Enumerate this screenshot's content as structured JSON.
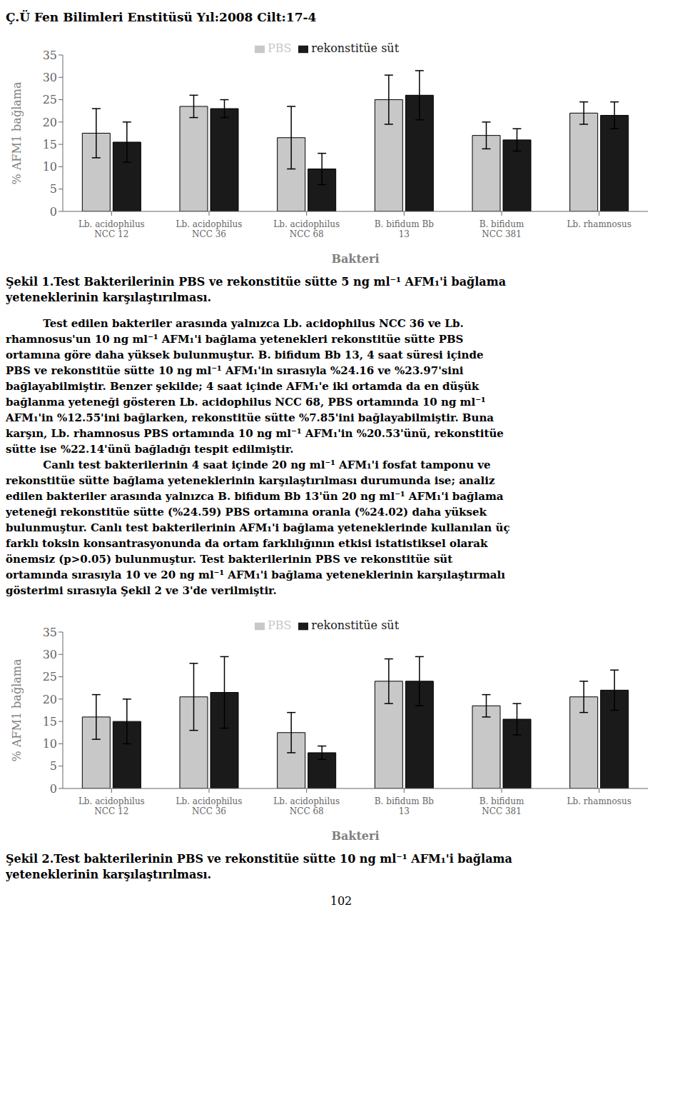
{
  "header": "Ç.Ü Fen Bilimleri Enstitüsü Yıl:2008  Cilt:17-4",
  "footer": "102",
  "body_text": [
    "          Test edilen bakteriler arasında yalnızca Lb. acidophilus NCC 36 ve Lb.",
    "rhamnosus'un 10 ng ml⁻¹ AFM₁'i bağlama yetenekleri rekonstitüe sütte PBS",
    "ortamına göre daha yüksek bulunmuştur. B. bifidum Bb 13, 4 saat süresi içinde",
    "PBS ve rekonstitüe sütte 10 ng ml⁻¹ AFM₁'in sırasıyla %24.16 ve %23.97'sini",
    "bağlayabilmiştir. Benzer şekilde; 4 saat içinde AFM₁'e iki ortamda da en düşük",
    "bağlanma yeteneği gösteren Lb. acidophilus NCC 68, PBS ortamında 10 ng ml⁻¹",
    "AFM₁'in %12.55'ini bağlarken, rekonstitüe sütte %7.85'ini bağlayabilmiştir. Buna",
    "karşın, Lb. rhamnosus PBS ortamında 10 ng ml⁻¹ AFM₁'in %20.53'ünü, rekonstitüe",
    "sütte ise %22.14'ünü bağladığı tespit edilmiştir.",
    "          Canlı test bakterilerinin 4 saat içinde 20 ng ml⁻¹ AFM₁'i fosfat tamponu ve",
    "rekonstitüe sütte bağlama yeteneklerinin karşılaştırılması durumunda ise; analiz",
    "edilen bakteriler arasında yalnızca B. bifidum Bb 13'ün 20 ng ml⁻¹ AFM₁'i bağlama",
    "yeteneği rekonstitüe sütte (%24.59) PBS ortamına oranla (%24.02) daha yüksek",
    "bulunmuştur. Canlı test bakterilerinin AFM₁'i bağlama yeteneklerinde kullanılan üç",
    "farklı toksin konsantrasyonunda da ortam farklılığının etkisi istatistiksel olarak",
    "önemsiz (p>0.05) bulunmuştur. Test bakterilerinin PBS ve rekonstitüe süt",
    "ortamında sırasıyla 10 ve 20 ng ml⁻¹ AFM₁'i bağlama yeteneklerinin karşılaştırmalı",
    "gösterimi sırasıyla Şekil 2 ve 3'de verilmiştir."
  ],
  "chart_data": [
    {
      "type": "bar",
      "title": "Şekil 1.Test Bakterilerinin PBS ve rekonstitüe sütte 5 ng ml⁻¹ AFM₁'i bağlama\nyeteneklerinin karşılaştırılması.",
      "xlabel": "Bakteri",
      "ylabel": "% AFM1 bağlama",
      "categories": [
        "Lb. acidophilus\nNCC 12",
        "Lb. acidophilus\nNCC 36",
        "Lb. acidophilus\nNCC 68",
        "B. bifidum Bb\n13",
        "B. bifidum\nNCC 381",
        "Lb. rhamnosus"
      ],
      "series": [
        {
          "name": "PBS",
          "color": "#c8c8c8",
          "values": [
            17.5,
            23.5,
            16.5,
            25.0,
            17.0,
            22.0
          ],
          "errors": [
            5.5,
            2.5,
            7.0,
            5.5,
            3.0,
            2.5
          ]
        },
        {
          "name": "rekonstitüe süt",
          "color": "#1a1a1a",
          "values": [
            15.5,
            23.0,
            9.5,
            26.0,
            16.0,
            21.5
          ],
          "errors": [
            4.5,
            2.0,
            3.5,
            5.5,
            2.5,
            3.0
          ]
        }
      ],
      "ylim": [
        0,
        35
      ],
      "yticks": [
        0,
        5,
        10,
        15,
        20,
        25,
        30,
        35
      ],
      "legend": "top",
      "grid": false
    },
    {
      "type": "bar",
      "title": "Şekil 2.Test bakterilerinin PBS ve rekonstitüe sütte 10 ng ml⁻¹ AFM₁'i bağlama\nyeteneklerinin karşılaştırılması.",
      "xlabel": "Bakteri",
      "ylabel": "% AFM1 bağlama",
      "categories": [
        "Lb. acidophilus\nNCC 12",
        "Lb. acidophilus\nNCC 36",
        "Lb. acidophilus\nNCC 68",
        "B. bifidum Bb\n13",
        "B. bifidum\nNCC 381",
        "Lb. rhamnosus"
      ],
      "series": [
        {
          "name": "PBS",
          "color": "#c8c8c8",
          "values": [
            16.0,
            20.5,
            12.5,
            24.0,
            18.5,
            20.5
          ],
          "errors": [
            5.0,
            7.5,
            4.5,
            5.0,
            2.5,
            3.5
          ]
        },
        {
          "name": "rekonstitüe süt",
          "color": "#1a1a1a",
          "values": [
            15.0,
            21.5,
            8.0,
            24.0,
            15.5,
            22.0
          ],
          "errors": [
            5.0,
            8.0,
            1.5,
            5.5,
            3.5,
            4.5
          ]
        }
      ],
      "ylim": [
        0,
        35
      ],
      "yticks": [
        0,
        5,
        10,
        15,
        20,
        25,
        30,
        35
      ],
      "legend": "top",
      "grid": false
    }
  ]
}
